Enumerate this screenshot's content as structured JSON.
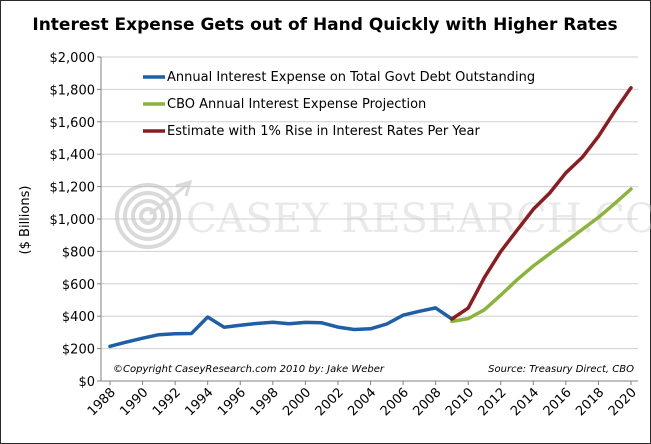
{
  "chart_data": {
    "type": "line",
    "title": "Interest Expense Gets out of Hand Quickly with Higher Rates",
    "ylabel": "($ Billions)",
    "xlabel": "",
    "ylim": [
      0,
      2000
    ],
    "xlim": [
      1988,
      2020
    ],
    "y_ticks": [
      "$0",
      "$200",
      "$400",
      "$600",
      "$800",
      "$1,000",
      "$1,200",
      "$1,400",
      "$1,600",
      "$1,800",
      "$2,000"
    ],
    "x_ticks": [
      "1988",
      "1990",
      "1992",
      "1994",
      "1996",
      "1998",
      "2000",
      "2002",
      "2004",
      "2006",
      "2008",
      "2010",
      "2012",
      "2014",
      "2016",
      "2018",
      "2020"
    ],
    "grid": true,
    "legend_position": "top-left",
    "series": [
      {
        "name": "Annual Interest Expense on Total Govt Debt Outstanding",
        "color": "#1f5fa8",
        "x": [
          1988,
          1989,
          1990,
          1991,
          1992,
          1993,
          1994,
          1995,
          1996,
          1997,
          1998,
          1999,
          2000,
          2001,
          2002,
          2003,
          2004,
          2005,
          2006,
          2007,
          2008,
          2009
        ],
        "values": [
          214,
          240,
          264,
          286,
          292,
          293,
          395,
          332,
          344,
          355,
          363,
          353,
          362,
          359,
          333,
          318,
          322,
          352,
          406,
          430,
          451,
          383
        ]
      },
      {
        "name": "CBO Annual Interest Expense Projection",
        "color": "#8ab43c",
        "x": [
          2009,
          2010,
          2011,
          2012,
          2013,
          2014,
          2015,
          2016,
          2017,
          2018,
          2019,
          2020
        ],
        "values": [
          368,
          385,
          440,
          530,
          625,
          710,
          785,
          860,
          935,
          1010,
          1095,
          1185
        ]
      },
      {
        "name": "Estimate with 1% Rise in Interest Rates Per Year",
        "color": "#8c1c20",
        "x": [
          2009,
          2010,
          2011,
          2012,
          2013,
          2014,
          2015,
          2016,
          2017,
          2018,
          2019,
          2020
        ],
        "values": [
          383,
          450,
          640,
          800,
          930,
          1060,
          1160,
          1285,
          1380,
          1510,
          1665,
          1810
        ]
      }
    ],
    "annotations": {
      "copyright": "©Copyright CaseyResearch.com 2010 by: Jake Weber",
      "source": "Source: Treasury Direct, CBO"
    }
  },
  "watermark": {
    "text": "CASEY RESEARCH.COM"
  },
  "colors": {
    "grid": "#cfcfcf",
    "axis": "#808080",
    "frame": "#2a2a2a"
  }
}
